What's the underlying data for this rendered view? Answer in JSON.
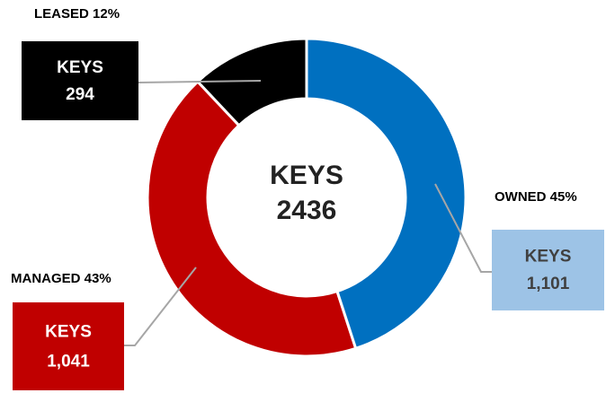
{
  "chart_data": {
    "type": "donut",
    "categories": [
      "OWNED",
      "MANAGED",
      "LEASED"
    ],
    "values": [
      45,
      43,
      12
    ],
    "value_labels": [
      "45%",
      "43%",
      "12%"
    ],
    "colors": [
      "#0070c0",
      "#c00000",
      "#000000"
    ],
    "key_label": "KEYS",
    "keys": [
      1101,
      1041,
      294
    ],
    "keys_labels": [
      "1,101",
      "1,041",
      "294"
    ],
    "box_colors": [
      "#9dc3e6",
      "#c00000",
      "#000000"
    ],
    "box_text_colors": [
      "#404040",
      "#ffffff",
      "#ffffff"
    ],
    "total": 2436
  }
}
